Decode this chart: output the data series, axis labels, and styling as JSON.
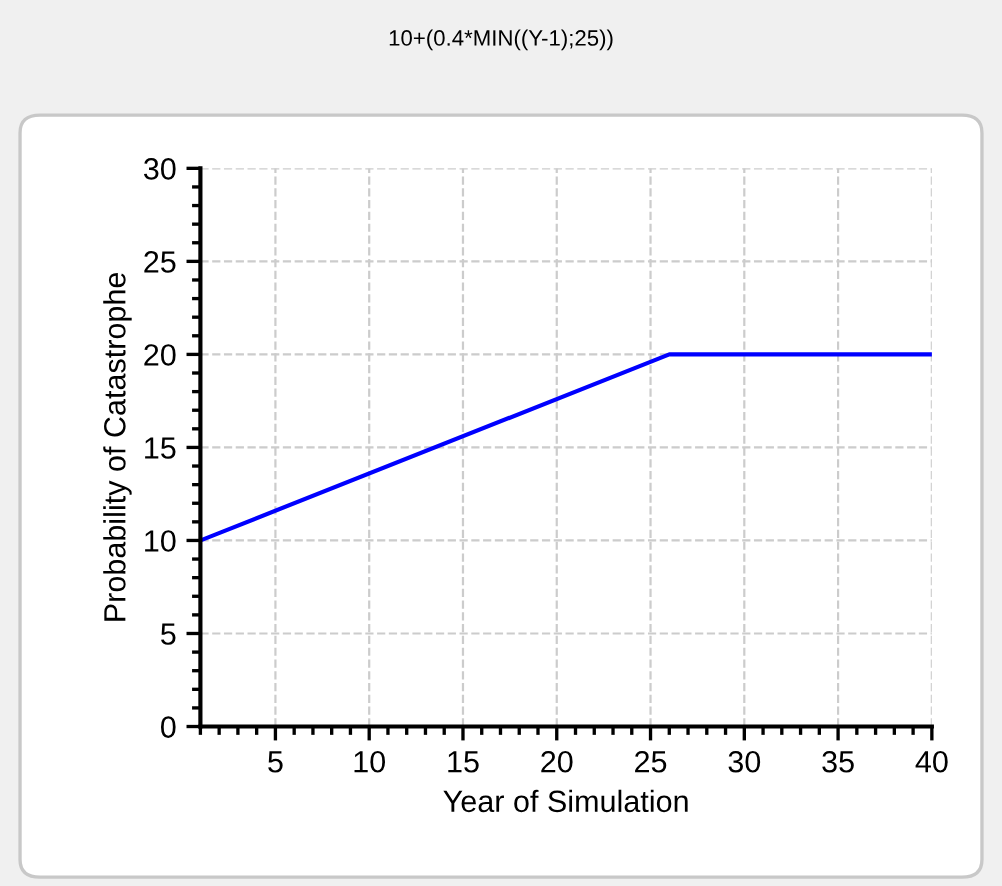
{
  "chart_data": {
    "type": "line",
    "title": "10+(0.4*MIN((Y-1);25))",
    "xlabel": "Year of Simulation",
    "ylabel": "Probability of Catastrophe",
    "x": [
      1,
      26,
      40
    ],
    "series": [
      {
        "color": "#0000ff",
        "values": [
          10,
          20,
          20
        ]
      }
    ],
    "xlim": [
      1,
      40
    ],
    "xticks": [
      5,
      10,
      15,
      20,
      25,
      30,
      35,
      40
    ],
    "ylim": [
      0,
      30
    ],
    "yticks": [
      0,
      5,
      10,
      15,
      20,
      25,
      30
    ],
    "grid": true,
    "line_style": "solid",
    "marker": "none",
    "legend": false
  }
}
